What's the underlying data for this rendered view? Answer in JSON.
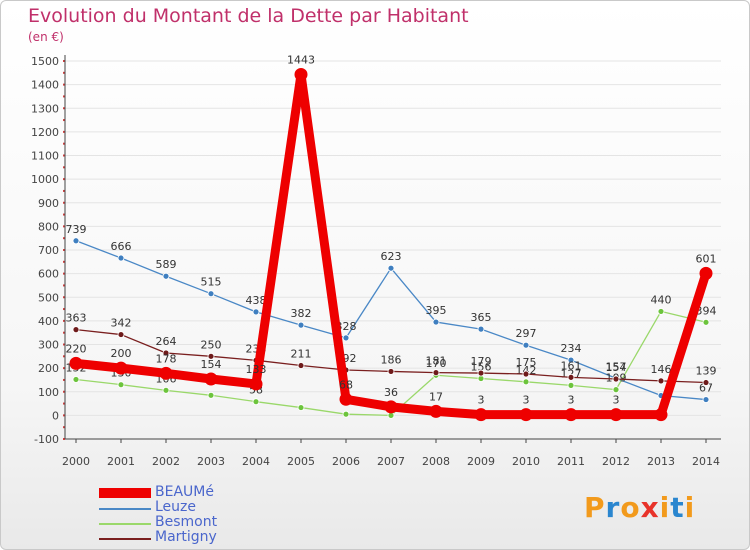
{
  "header": {
    "title": "Evolution du Montant de la Dette par Habitant",
    "subtitle": "(en €)"
  },
  "logo": {
    "text": "Proxiti",
    "colors": [
      "#f29a1c",
      "#2a86cf",
      "#f29a1c",
      "#e8332a",
      "#f29a1c",
      "#2a86cf",
      "#f29a1c"
    ]
  },
  "colors": {
    "title": "#c0306a",
    "axis": "#444444",
    "grid": "#e4e4e4",
    "legend_text": "#4a66cc"
  },
  "chart_data": {
    "type": "line",
    "x": [
      2000,
      2001,
      2002,
      2003,
      2004,
      2005,
      2006,
      2007,
      2008,
      2009,
      2010,
      2011,
      2012,
      2013,
      2014
    ],
    "ylim": [
      -100,
      1500
    ],
    "yticks": [
      -100,
      0,
      100,
      200,
      300,
      400,
      500,
      600,
      700,
      800,
      900,
      1000,
      1100,
      1200,
      1300,
      1400,
      1500
    ],
    "grid": true,
    "legend_position": "bottom-left",
    "series": [
      {
        "name": "Leuze",
        "color": "#4a88c6",
        "marker": "#3f7fc0",
        "values": [
          739,
          666,
          589,
          515,
          438,
          382,
          328,
          623,
          395,
          365,
          297,
          234,
          157,
          84,
          67
        ],
        "labels": [
          "739",
          "666",
          "589",
          "515",
          "438",
          "382",
          "328",
          "623",
          "395",
          "365",
          "297",
          "234",
          "157",
          "",
          "67"
        ]
      },
      {
        "name": "Besmont",
        "color": "#9ad86a",
        "marker": "#6cc43c",
        "values": [
          152,
          130,
          106,
          85,
          58,
          33,
          5,
          0,
          170,
          156,
          142,
          127,
          109,
          440,
          394
        ],
        "labels": [
          "152",
          "130",
          "106",
          "",
          "58",
          "",
          "",
          "",
          "170",
          "156",
          "142",
          "127",
          "109",
          "440",
          "394"
        ]
      },
      {
        "name": "Martigny",
        "color": "#7a1f1f",
        "marker": "#6e1a1a",
        "values": [
          363,
          342,
          264,
          250,
          233,
          211,
          192,
          186,
          181,
          179,
          175,
          161,
          154,
          146,
          139
        ],
        "labels": [
          "363",
          "342",
          "264",
          "250",
          "233",
          "211",
          "192",
          "186",
          "181",
          "179",
          "175",
          "161",
          "154",
          "146",
          "139"
        ]
      },
      {
        "name": "BEAUMé",
        "color": "#ee0000",
        "marker": "#ee0000",
        "values": [
          220,
          200,
          178,
          154,
          133,
          1443,
          68,
          36,
          17,
          3,
          3,
          3,
          3,
          3,
          601
        ],
        "labels": [
          "220",
          "200",
          "178",
          "154",
          "133",
          "1443",
          "68",
          "36",
          "17",
          "3",
          "3",
          "3",
          "3",
          "",
          "601"
        ]
      }
    ]
  }
}
